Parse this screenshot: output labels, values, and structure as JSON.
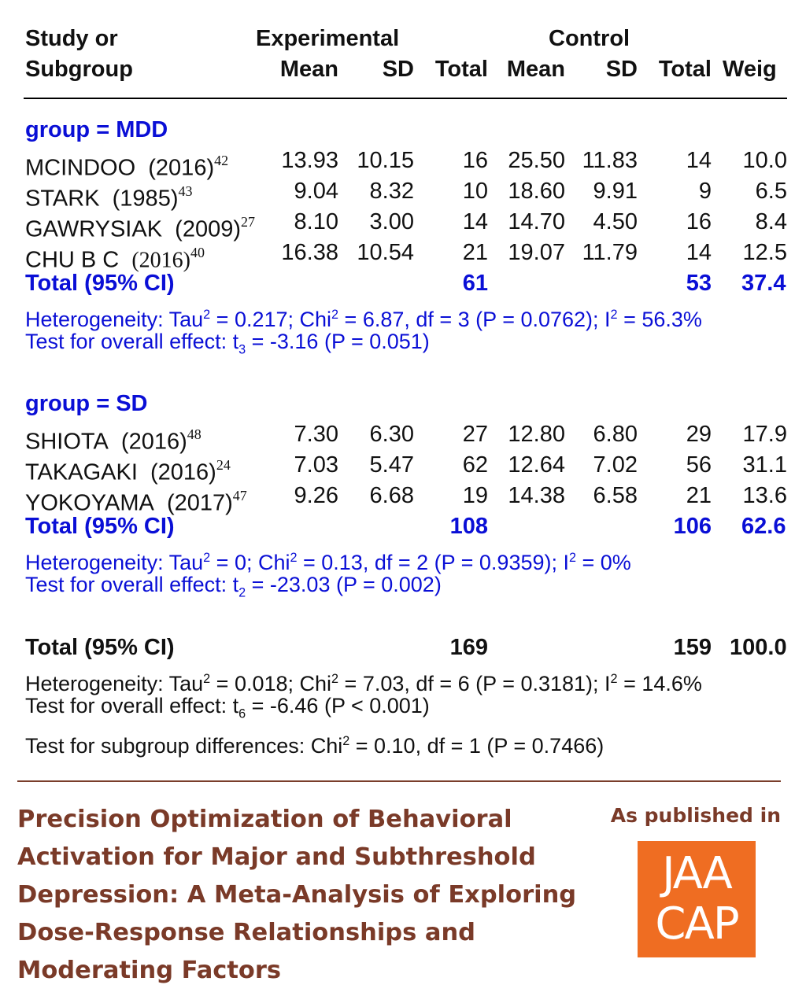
{
  "header": {
    "col1_line1": "Study or",
    "col1_line2": "Subgroup",
    "experimental": "Experimental",
    "control": "Control",
    "mean": "Mean",
    "sd": "SD",
    "total": "Total",
    "weight": "Weig"
  },
  "groups": [
    {
      "label": "group = MDD",
      "studies": [
        {
          "name": "MCINDOO",
          "year": "(2016)",
          "ref": "42",
          "e_mean": "13.93",
          "e_sd": "10.15",
          "e_total": "16",
          "c_mean": "25.50",
          "c_sd": "11.83",
          "c_total": "14",
          "weight": "10.0"
        },
        {
          "name": "STARK",
          "year": "(1985)",
          "ref": "43",
          "e_mean": "9.04",
          "e_sd": "8.32",
          "e_total": "10",
          "c_mean": "18.60",
          "c_sd": "9.91",
          "c_total": "9",
          "weight": "6.5"
        },
        {
          "name": "GAWRYSIAK",
          "year": "(2009)",
          "ref": "27",
          "e_mean": "8.10",
          "e_sd": "3.00",
          "e_total": "14",
          "c_mean": "14.70",
          "c_sd": "4.50",
          "c_total": "16",
          "weight": "8.4"
        },
        {
          "name": "CHU B C",
          "year": "(2016)",
          "ref": "40",
          "e_mean": "16.38",
          "e_sd": "10.54",
          "e_total": "21",
          "c_mean": "19.07",
          "c_sd": "11.79",
          "c_total": "14",
          "weight": "12.5"
        }
      ],
      "total_label": "Total (95% CI)",
      "e_total": "61",
      "c_total": "53",
      "weight_total": "37.4",
      "heterogeneity": {
        "tau2": "0.217",
        "chi2": "6.87",
        "df": "3",
        "p": "0.0762",
        "i2": "56.3%"
      },
      "overall": {
        "t_sub": "3",
        "t": "-3.16",
        "p": "(P = 0.051)"
      }
    },
    {
      "label": "group = SD",
      "studies": [
        {
          "name": "SHIOTA",
          "year": "(2016)",
          "ref": "48",
          "e_mean": "7.30",
          "e_sd": "6.30",
          "e_total": "27",
          "c_mean": "12.80",
          "c_sd": "6.80",
          "c_total": "29",
          "weight": "17.9"
        },
        {
          "name": "TAKAGAKI",
          "year": "(2016)",
          "ref": "24",
          "e_mean": "7.03",
          "e_sd": "5.47",
          "e_total": "62",
          "c_mean": "12.64",
          "c_sd": "7.02",
          "c_total": "56",
          "weight": "31.1"
        },
        {
          "name": "YOKOYAMA",
          "year": "(2017)",
          "ref": "47",
          "e_mean": "9.26",
          "e_sd": "6.68",
          "e_total": "19",
          "c_mean": "14.38",
          "c_sd": "6.58",
          "c_total": "21",
          "weight": "13.6"
        }
      ],
      "total_label": "Total (95% CI)",
      "e_total": "108",
      "c_total": "106",
      "weight_total": "62.6",
      "heterogeneity": {
        "tau2": "0",
        "chi2": "0.13",
        "df": "2",
        "p": "0.9359",
        "i2": "0%"
      },
      "overall": {
        "t_sub": "2",
        "t": "-23.03",
        "p": "(P = 0.002)"
      }
    }
  ],
  "overall": {
    "total_label": "Total (95% CI)",
    "e_total": "169",
    "c_total": "159",
    "weight_total": "100.0",
    "heterogeneity": {
      "tau2": "0.018",
      "chi2": "7.03",
      "df": "6",
      "p": "0.3181",
      "i2": "14.6%"
    },
    "overall": {
      "t_sub": "6",
      "t": "-6.46",
      "p": "(P < 0.001)"
    },
    "subgroup_test": {
      "chi2": "0.10",
      "df": "1",
      "p": "0.7466"
    }
  },
  "text": {
    "heterogeneity_prefix": "Heterogeneity: Tau",
    "overall_prefix": "Test for overall effect: t",
    "subgroup_prefix": "Test for subgroup differences: Chi"
  },
  "footer": {
    "title": "Precision Optimization of Behavioral Activation for Major and Subthreshold Depression: A Meta-Analysis of Exploring Dose-Response Relationships and Moderating Factors",
    "published_label": "As published in",
    "logo_line1": "JAA",
    "logo_line2": "CAP",
    "accent_color": "#7a3a28",
    "logo_color": "#ef6d22",
    "subgroup_color": "#0a0fd6"
  }
}
